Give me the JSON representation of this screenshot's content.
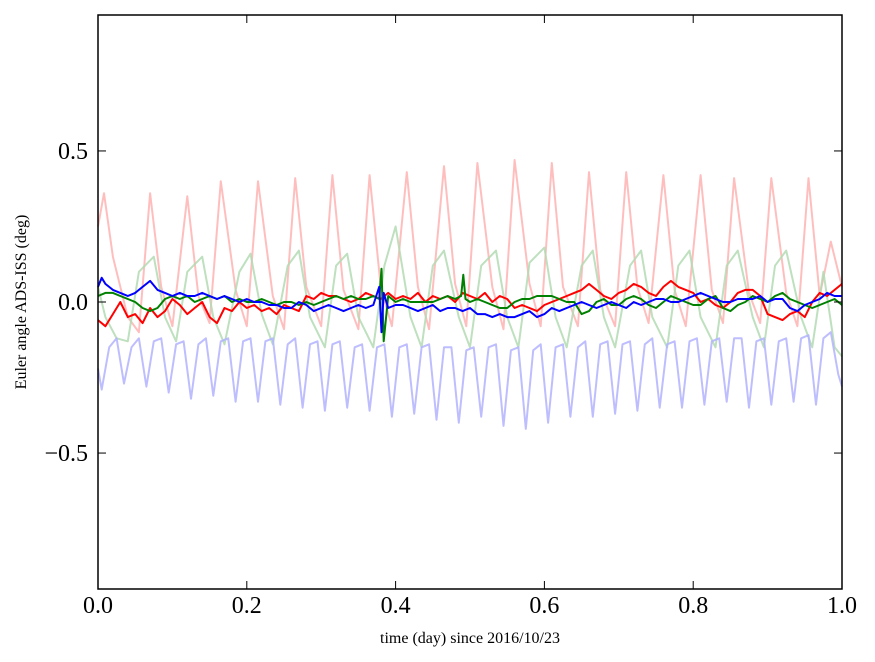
{
  "chart_data": {
    "type": "line",
    "xlabel": "time (day) since 2016/10/23",
    "ylabel": "Euler angle ADS-ISS (deg)",
    "xlim": [
      0.0,
      1.0
    ],
    "ylim": [
      -0.95,
      0.95
    ],
    "xticks": [
      0.0,
      0.2,
      0.4,
      0.6,
      0.8,
      1.0
    ],
    "xtick_labels": [
      "0.0",
      "0.2",
      "0.4",
      "0.6",
      "0.8",
      "1.0"
    ],
    "yticks": [
      -0.5,
      0.0,
      0.5
    ],
    "ytick_labels": [
      "−0.5",
      "0.0",
      "0.5"
    ],
    "grid": false,
    "series": [
      {
        "color": "#ffb3b3",
        "opacity": 0.85,
        "width": 2,
        "x": [
          0.0,
          0.008,
          0.02,
          0.04,
          0.055,
          0.07,
          0.085,
          0.1,
          0.12,
          0.135,
          0.15,
          0.165,
          0.185,
          0.2,
          0.215,
          0.235,
          0.25,
          0.265,
          0.28,
          0.3,
          0.315,
          0.33,
          0.35,
          0.365,
          0.38,
          0.395,
          0.415,
          0.43,
          0.445,
          0.465,
          0.48,
          0.495,
          0.51,
          0.53,
          0.545,
          0.56,
          0.58,
          0.595,
          0.61,
          0.625,
          0.645,
          0.66,
          0.675,
          0.695,
          0.71,
          0.725,
          0.74,
          0.76,
          0.775,
          0.79,
          0.81,
          0.825,
          0.84,
          0.855,
          0.875,
          0.89,
          0.905,
          0.925,
          0.94,
          0.955,
          0.97,
          0.985,
          1.0
        ],
        "y": [
          0.25,
          0.36,
          0.15,
          -0.05,
          -0.1,
          0.36,
          0.05,
          -0.08,
          0.35,
          0.02,
          -0.07,
          0.4,
          0.04,
          -0.08,
          0.4,
          0.02,
          -0.09,
          0.41,
          0.05,
          -0.08,
          0.42,
          0.04,
          -0.09,
          0.42,
          0.05,
          -0.08,
          0.43,
          0.05,
          -0.09,
          0.45,
          0.06,
          -0.08,
          0.46,
          0.05,
          -0.09,
          0.47,
          0.06,
          -0.08,
          0.46,
          0.05,
          -0.08,
          0.43,
          0.04,
          -0.08,
          0.43,
          0.05,
          -0.07,
          0.42,
          0.04,
          -0.08,
          0.42,
          0.04,
          -0.07,
          0.41,
          0.03,
          -0.07,
          0.41,
          0.03,
          -0.08,
          0.41,
          0.02,
          0.2,
          0.05
        ]
      },
      {
        "color": "#b3dab3",
        "opacity": 0.85,
        "width": 2,
        "x": [
          0.0,
          0.01,
          0.025,
          0.04,
          0.055,
          0.075,
          0.09,
          0.105,
          0.12,
          0.14,
          0.155,
          0.17,
          0.19,
          0.205,
          0.22,
          0.235,
          0.255,
          0.27,
          0.285,
          0.305,
          0.32,
          0.335,
          0.35,
          0.37,
          0.385,
          0.4,
          0.42,
          0.435,
          0.45,
          0.465,
          0.485,
          0.5,
          0.515,
          0.535,
          0.55,
          0.565,
          0.58,
          0.6,
          0.615,
          0.63,
          0.65,
          0.665,
          0.68,
          0.695,
          0.715,
          0.73,
          0.745,
          0.765,
          0.78,
          0.795,
          0.81,
          0.83,
          0.845,
          0.86,
          0.88,
          0.895,
          0.91,
          0.925,
          0.945,
          0.96,
          0.975,
          0.99,
          1.0
        ],
        "y": [
          0.05,
          -0.05,
          -0.12,
          -0.13,
          0.1,
          0.15,
          -0.05,
          -0.13,
          0.1,
          0.15,
          -0.05,
          -0.14,
          0.1,
          0.16,
          -0.04,
          -0.14,
          0.12,
          0.17,
          -0.05,
          -0.15,
          0.12,
          0.16,
          -0.05,
          -0.15,
          0.12,
          0.25,
          -0.05,
          -0.15,
          0.12,
          0.17,
          -0.05,
          -0.15,
          0.12,
          0.17,
          -0.05,
          -0.15,
          0.13,
          0.18,
          -0.05,
          -0.15,
          0.12,
          0.17,
          -0.05,
          -0.15,
          0.12,
          0.17,
          -0.05,
          -0.15,
          0.12,
          0.17,
          -0.05,
          -0.15,
          0.12,
          0.17,
          -0.05,
          -0.15,
          0.12,
          0.17,
          -0.05,
          -0.15,
          0.1,
          -0.15,
          -0.18
        ]
      },
      {
        "color": "#b3b3ff",
        "opacity": 0.85,
        "width": 2,
        "x": [
          0.0,
          0.005,
          0.015,
          0.025,
          0.035,
          0.045,
          0.055,
          0.065,
          0.075,
          0.085,
          0.095,
          0.105,
          0.115,
          0.125,
          0.135,
          0.145,
          0.155,
          0.165,
          0.175,
          0.185,
          0.195,
          0.205,
          0.215,
          0.225,
          0.235,
          0.245,
          0.255,
          0.265,
          0.275,
          0.285,
          0.295,
          0.305,
          0.315,
          0.325,
          0.335,
          0.345,
          0.355,
          0.365,
          0.375,
          0.385,
          0.395,
          0.405,
          0.415,
          0.425,
          0.435,
          0.445,
          0.455,
          0.465,
          0.475,
          0.485,
          0.495,
          0.505,
          0.515,
          0.525,
          0.535,
          0.545,
          0.555,
          0.565,
          0.575,
          0.585,
          0.595,
          0.605,
          0.615,
          0.625,
          0.635,
          0.645,
          0.655,
          0.665,
          0.675,
          0.685,
          0.695,
          0.705,
          0.715,
          0.725,
          0.735,
          0.745,
          0.755,
          0.765,
          0.775,
          0.785,
          0.795,
          0.805,
          0.815,
          0.825,
          0.835,
          0.845,
          0.855,
          0.865,
          0.875,
          0.885,
          0.895,
          0.905,
          0.915,
          0.925,
          0.935,
          0.945,
          0.955,
          0.965,
          0.975,
          0.985,
          0.995,
          1.0
        ],
        "y": [
          -0.22,
          -0.29,
          -0.15,
          -0.12,
          -0.27,
          -0.15,
          -0.12,
          -0.28,
          -0.13,
          -0.12,
          -0.3,
          -0.14,
          -0.13,
          -0.32,
          -0.14,
          -0.12,
          -0.31,
          -0.13,
          -0.12,
          -0.33,
          -0.13,
          -0.12,
          -0.33,
          -0.13,
          -0.12,
          -0.34,
          -0.14,
          -0.12,
          -0.35,
          -0.14,
          -0.13,
          -0.36,
          -0.14,
          -0.13,
          -0.35,
          -0.15,
          -0.14,
          -0.36,
          -0.15,
          -0.14,
          -0.38,
          -0.15,
          -0.14,
          -0.37,
          -0.15,
          -0.14,
          -0.39,
          -0.15,
          -0.15,
          -0.4,
          -0.16,
          -0.15,
          -0.38,
          -0.15,
          -0.14,
          -0.41,
          -0.16,
          -0.15,
          -0.42,
          -0.16,
          -0.14,
          -0.4,
          -0.15,
          -0.14,
          -0.38,
          -0.15,
          -0.13,
          -0.38,
          -0.14,
          -0.13,
          -0.37,
          -0.14,
          -0.13,
          -0.36,
          -0.14,
          -0.12,
          -0.35,
          -0.14,
          -0.13,
          -0.35,
          -0.13,
          -0.12,
          -0.34,
          -0.13,
          -0.12,
          -0.33,
          -0.12,
          -0.12,
          -0.35,
          -0.13,
          -0.12,
          -0.34,
          -0.13,
          -0.12,
          -0.33,
          -0.12,
          -0.11,
          -0.34,
          -0.12,
          -0.1,
          -0.24,
          -0.28
        ]
      },
      {
        "color": "#ff0000",
        "opacity": 1,
        "width": 2,
        "x": [
          0.0,
          0.01,
          0.02,
          0.03,
          0.04,
          0.05,
          0.06,
          0.07,
          0.08,
          0.09,
          0.1,
          0.11,
          0.12,
          0.13,
          0.14,
          0.15,
          0.16,
          0.17,
          0.18,
          0.19,
          0.2,
          0.21,
          0.22,
          0.23,
          0.24,
          0.25,
          0.26,
          0.27,
          0.28,
          0.29,
          0.3,
          0.31,
          0.32,
          0.33,
          0.34,
          0.35,
          0.36,
          0.37,
          0.38,
          0.39,
          0.4,
          0.41,
          0.42,
          0.43,
          0.44,
          0.45,
          0.46,
          0.47,
          0.48,
          0.49,
          0.5,
          0.51,
          0.52,
          0.53,
          0.54,
          0.55,
          0.56,
          0.57,
          0.58,
          0.59,
          0.6,
          0.61,
          0.62,
          0.63,
          0.64,
          0.65,
          0.66,
          0.67,
          0.68,
          0.69,
          0.7,
          0.71,
          0.72,
          0.73,
          0.74,
          0.75,
          0.76,
          0.77,
          0.78,
          0.79,
          0.8,
          0.81,
          0.82,
          0.83,
          0.84,
          0.85,
          0.86,
          0.87,
          0.88,
          0.89,
          0.9,
          0.91,
          0.92,
          0.93,
          0.94,
          0.95,
          0.96,
          0.97,
          0.98,
          0.99,
          1.0
        ],
        "y": [
          -0.06,
          -0.08,
          -0.04,
          0.0,
          -0.05,
          -0.04,
          -0.07,
          -0.02,
          -0.05,
          -0.03,
          0.01,
          -0.01,
          -0.04,
          -0.02,
          0.0,
          -0.05,
          -0.07,
          -0.02,
          -0.03,
          0.0,
          -0.02,
          -0.01,
          -0.03,
          -0.02,
          -0.04,
          -0.01,
          -0.02,
          -0.03,
          0.02,
          0.01,
          0.03,
          0.02,
          0.02,
          0.01,
          0.0,
          0.01,
          0.03,
          0.02,
          0.01,
          0.03,
          0.01,
          0.02,
          0.01,
          0.03,
          0.0,
          0.02,
          0.01,
          0.02,
          0.0,
          0.03,
          0.02,
          0.01,
          0.03,
          0.0,
          0.02,
          0.01,
          -0.02,
          -0.01,
          -0.02,
          -0.03,
          -0.01,
          0.0,
          0.01,
          0.02,
          0.03,
          0.04,
          0.06,
          0.04,
          0.02,
          0.01,
          0.03,
          0.04,
          0.06,
          0.05,
          0.03,
          0.02,
          0.05,
          0.07,
          0.05,
          0.04,
          0.03,
          0.0,
          0.01,
          -0.01,
          -0.02,
          0.0,
          0.03,
          0.04,
          0.04,
          0.02,
          -0.04,
          -0.05,
          -0.06,
          -0.04,
          -0.03,
          -0.05,
          0.0,
          0.03,
          0.02,
          0.04,
          0.06
        ]
      },
      {
        "color": "#008000",
        "opacity": 1,
        "width": 2,
        "x": [
          0.0,
          0.01,
          0.02,
          0.03,
          0.04,
          0.05,
          0.06,
          0.07,
          0.08,
          0.09,
          0.1,
          0.11,
          0.12,
          0.13,
          0.14,
          0.15,
          0.16,
          0.17,
          0.18,
          0.19,
          0.2,
          0.21,
          0.22,
          0.23,
          0.24,
          0.25,
          0.26,
          0.27,
          0.28,
          0.29,
          0.3,
          0.31,
          0.32,
          0.33,
          0.34,
          0.35,
          0.36,
          0.37,
          0.378,
          0.381,
          0.384,
          0.39,
          0.4,
          0.41,
          0.42,
          0.43,
          0.44,
          0.45,
          0.46,
          0.47,
          0.48,
          0.488,
          0.491,
          0.494,
          0.5,
          0.51,
          0.52,
          0.53,
          0.54,
          0.55,
          0.56,
          0.57,
          0.58,
          0.59,
          0.6,
          0.61,
          0.62,
          0.63,
          0.64,
          0.65,
          0.66,
          0.67,
          0.68,
          0.69,
          0.7,
          0.71,
          0.72,
          0.73,
          0.74,
          0.75,
          0.76,
          0.77,
          0.78,
          0.79,
          0.8,
          0.81,
          0.82,
          0.83,
          0.84,
          0.85,
          0.86,
          0.87,
          0.88,
          0.89,
          0.9,
          0.91,
          0.92,
          0.93,
          0.94,
          0.95,
          0.96,
          0.97,
          0.98,
          0.99,
          1.0
        ],
        "y": [
          0.02,
          0.03,
          0.03,
          0.02,
          0.01,
          0.0,
          -0.02,
          -0.03,
          -0.02,
          0.01,
          0.02,
          0.01,
          0.02,
          0.0,
          0.01,
          0.02,
          0.01,
          0.02,
          0.0,
          0.01,
          0.0,
          0.0,
          0.01,
          0.0,
          -0.01,
          0.0,
          0.0,
          -0.01,
          0.0,
          -0.01,
          0.0,
          0.01,
          0.02,
          0.01,
          0.02,
          0.01,
          0.01,
          0.02,
          0.01,
          0.11,
          -0.13,
          0.02,
          0.0,
          0.01,
          0.0,
          0.0,
          0.0,
          0.0,
          0.01,
          0.02,
          0.01,
          0.02,
          0.09,
          0.01,
          0.0,
          0.01,
          0.0,
          -0.01,
          -0.02,
          -0.02,
          0.0,
          0.01,
          0.01,
          0.02,
          0.02,
          0.02,
          0.01,
          0.0,
          0.0,
          -0.04,
          -0.03,
          0.0,
          0.01,
          -0.01,
          -0.01,
          0.01,
          0.02,
          0.01,
          -0.01,
          -0.02,
          0.0,
          0.02,
          0.01,
          0.0,
          -0.01,
          -0.01,
          0.01,
          0.02,
          -0.02,
          -0.03,
          -0.01,
          0.0,
          0.02,
          0.01,
          0.0,
          0.02,
          0.03,
          0.01,
          0.0,
          -0.01,
          -0.02,
          -0.01,
          0.0,
          0.01,
          -0.01
        ]
      },
      {
        "color": "#0000ff",
        "opacity": 1,
        "width": 2,
        "x": [
          0.0,
          0.005,
          0.01,
          0.02,
          0.03,
          0.04,
          0.05,
          0.06,
          0.07,
          0.08,
          0.09,
          0.1,
          0.11,
          0.12,
          0.13,
          0.14,
          0.15,
          0.16,
          0.17,
          0.18,
          0.19,
          0.2,
          0.21,
          0.22,
          0.23,
          0.24,
          0.25,
          0.26,
          0.27,
          0.28,
          0.29,
          0.3,
          0.31,
          0.32,
          0.33,
          0.34,
          0.35,
          0.36,
          0.37,
          0.378,
          0.381,
          0.384,
          0.39,
          0.4,
          0.41,
          0.42,
          0.43,
          0.44,
          0.45,
          0.46,
          0.47,
          0.48,
          0.49,
          0.5,
          0.51,
          0.52,
          0.53,
          0.54,
          0.55,
          0.56,
          0.57,
          0.58,
          0.59,
          0.6,
          0.61,
          0.62,
          0.63,
          0.64,
          0.65,
          0.66,
          0.67,
          0.68,
          0.69,
          0.7,
          0.71,
          0.72,
          0.73,
          0.74,
          0.75,
          0.76,
          0.77,
          0.78,
          0.79,
          0.8,
          0.81,
          0.82,
          0.83,
          0.84,
          0.85,
          0.86,
          0.87,
          0.88,
          0.89,
          0.9,
          0.91,
          0.92,
          0.93,
          0.94,
          0.95,
          0.96,
          0.97,
          0.98,
          0.99,
          1.0
        ],
        "y": [
          0.05,
          0.08,
          0.06,
          0.04,
          0.03,
          0.02,
          0.03,
          0.05,
          0.07,
          0.04,
          0.03,
          0.02,
          0.03,
          0.02,
          0.02,
          0.03,
          0.02,
          0.01,
          0.02,
          0.01,
          0.0,
          0.01,
          0.0,
          0.0,
          -0.01,
          -0.01,
          -0.02,
          -0.02,
          0.0,
          -0.01,
          -0.03,
          -0.02,
          -0.01,
          -0.02,
          -0.03,
          -0.02,
          -0.01,
          -0.02,
          -0.01,
          0.05,
          -0.1,
          0.03,
          -0.02,
          -0.01,
          -0.01,
          -0.02,
          -0.03,
          -0.02,
          -0.01,
          -0.03,
          -0.02,
          -0.02,
          -0.03,
          -0.02,
          -0.04,
          -0.04,
          -0.05,
          -0.04,
          -0.05,
          -0.05,
          -0.04,
          -0.03,
          -0.05,
          -0.04,
          -0.02,
          -0.03,
          -0.02,
          -0.01,
          0.0,
          -0.01,
          -0.02,
          -0.01,
          0.0,
          -0.01,
          -0.02,
          0.0,
          -0.01,
          0.0,
          0.01,
          0.01,
          0.0,
          0.0,
          0.01,
          0.02,
          0.03,
          0.02,
          0.01,
          0.0,
          0.0,
          0.01,
          0.01,
          0.01,
          0.02,
          0.0,
          0.01,
          0.01,
          -0.02,
          -0.03,
          -0.01,
          0.0,
          0.01,
          0.03,
          0.02,
          0.02
        ]
      }
    ]
  }
}
